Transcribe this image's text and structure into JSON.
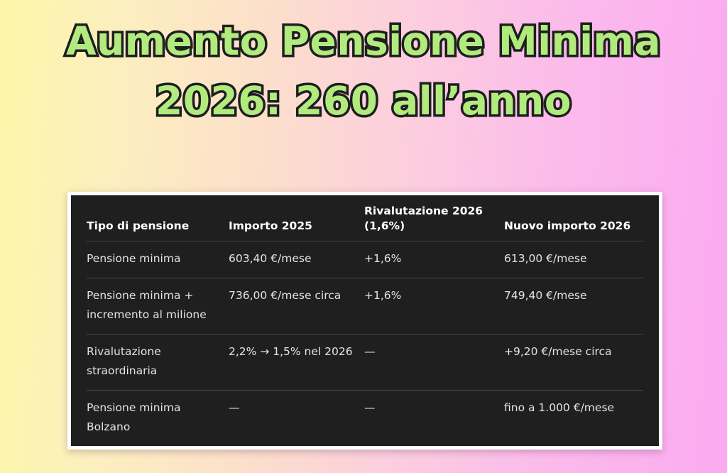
{
  "title": {
    "line1": "Aumento Pensione Minima",
    "line2": "2026: 260 all’anno"
  },
  "colors": {
    "title_fill": "#b2eb7d",
    "title_outline": "#1e1e20",
    "background_gradient_left": "#fdf6a9",
    "background_gradient_right": "#fbaaf1",
    "table_background": "#1f1f1f",
    "table_frame": "#ffffff",
    "header_text": "#ffffff",
    "body_text": "#e4e4e4",
    "divider": "#464646"
  },
  "chart_data": {
    "type": "table",
    "title": "Aumento Pensione Minima 2026: 260 all’anno",
    "columns": [
      "Tipo di pensione",
      "Importo 2025",
      "Rivalutazione 2026 (1,6%)",
      "Nuovo importo 2026"
    ],
    "rows": [
      [
        "Pensione minima",
        "603,40 €/mese",
        "+1,6%",
        "613,00 €/mese"
      ],
      [
        "Pensione minima + incremento al milione",
        "736,00 €/mese circa",
        "+1,6%",
        "749,40 €/mese"
      ],
      [
        "Rivalutazione straordinaria",
        "2,2% → 1,5% nel 2026",
        "—",
        "+9,20 €/mese circa"
      ],
      [
        "Pensione minima Bolzano",
        "—",
        "—",
        "fino a 1.000 €/mese"
      ]
    ]
  }
}
